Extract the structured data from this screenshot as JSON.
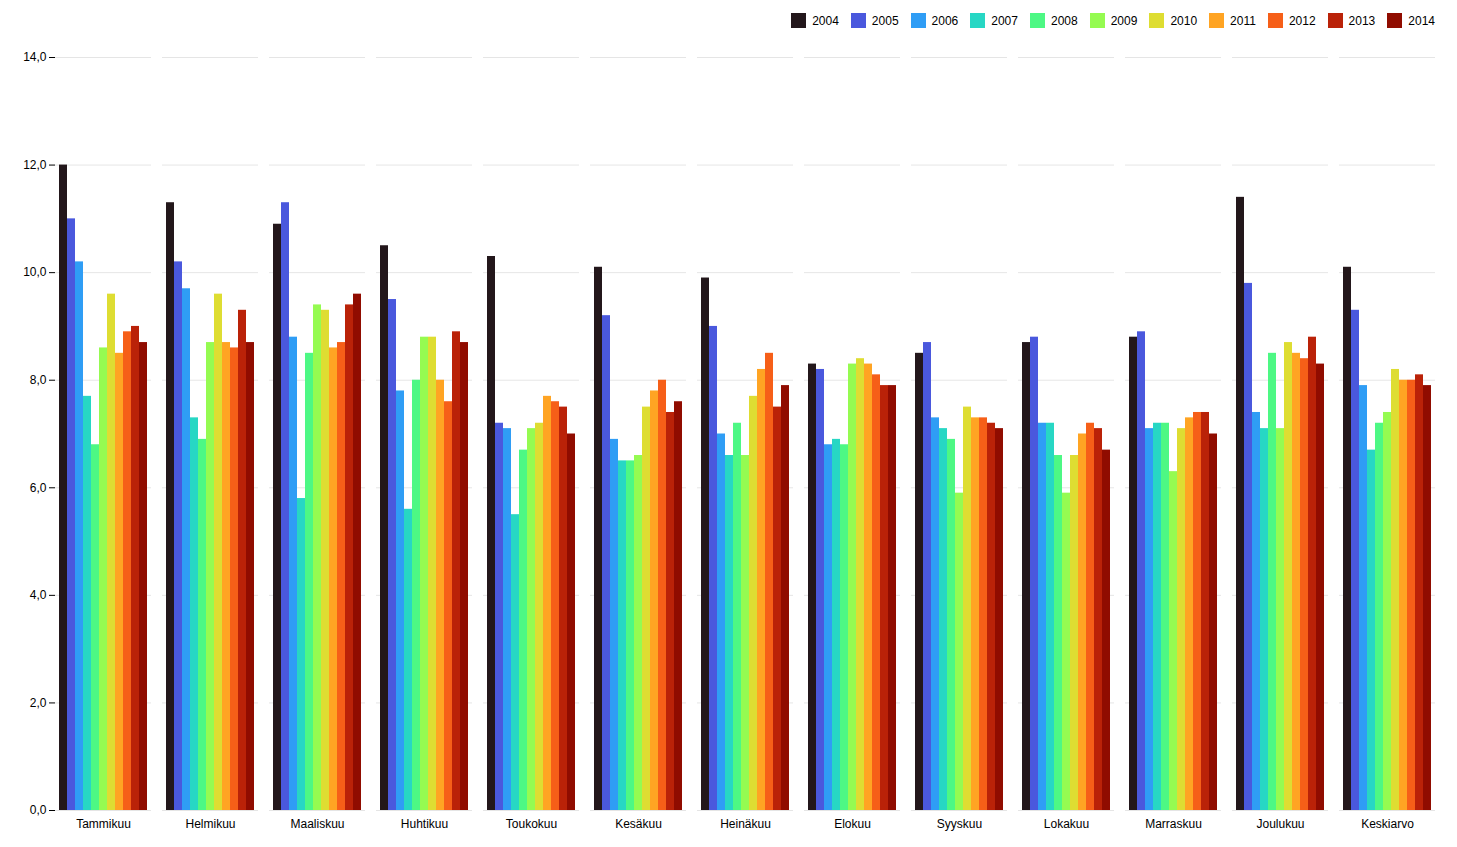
{
  "chart_data": {
    "type": "bar",
    "categories": [
      "Tammikuu",
      "Helmikuu",
      "Maaliskuu",
      "Huhtikuu",
      "Toukokuu",
      "Kesäkuu",
      "Heinäkuu",
      "Elokuu",
      "Syyskuu",
      "Lokakuu",
      "Marraskuu",
      "Joulukuu",
      "Keskiarvo"
    ],
    "series": [
      {
        "name": "2004",
        "values": [
          12.0,
          11.3,
          10.9,
          10.5,
          10.3,
          10.1,
          9.9,
          8.3,
          8.5,
          8.7,
          8.8,
          11.4,
          10.1
        ]
      },
      {
        "name": "2005",
        "values": [
          11.0,
          10.2,
          11.3,
          9.5,
          7.2,
          9.2,
          9.0,
          8.2,
          8.7,
          8.8,
          8.9,
          9.8,
          9.3
        ]
      },
      {
        "name": "2006",
        "values": [
          10.2,
          9.7,
          8.8,
          7.8,
          7.1,
          6.9,
          7.0,
          6.8,
          7.3,
          7.2,
          7.1,
          7.4,
          7.9
        ]
      },
      {
        "name": "2007",
        "values": [
          7.7,
          7.3,
          5.8,
          5.6,
          5.5,
          6.5,
          6.6,
          6.9,
          7.1,
          7.2,
          7.2,
          7.1,
          6.7
        ]
      },
      {
        "name": "2008",
        "values": [
          6.8,
          6.9,
          8.5,
          8.0,
          6.7,
          6.5,
          7.2,
          6.8,
          6.9,
          6.6,
          7.2,
          8.5,
          7.2
        ]
      },
      {
        "name": "2009",
        "values": [
          8.6,
          8.7,
          9.4,
          8.8,
          7.1,
          6.6,
          6.6,
          8.3,
          5.9,
          5.9,
          6.3,
          7.1,
          7.4
        ]
      },
      {
        "name": "2010",
        "values": [
          9.6,
          9.6,
          9.3,
          8.8,
          7.2,
          7.5,
          7.7,
          8.4,
          7.5,
          6.6,
          7.1,
          8.7,
          8.2
        ]
      },
      {
        "name": "2011",
        "values": [
          8.5,
          8.7,
          8.6,
          8.0,
          7.7,
          7.8,
          8.2,
          8.3,
          7.3,
          7.0,
          7.3,
          8.5,
          8.0
        ]
      },
      {
        "name": "2012",
        "values": [
          8.9,
          8.6,
          8.7,
          7.6,
          7.6,
          8.0,
          8.5,
          8.1,
          7.3,
          7.2,
          7.4,
          8.4,
          8.0
        ]
      },
      {
        "name": "2013",
        "values": [
          9.0,
          9.3,
          9.4,
          8.9,
          7.5,
          7.4,
          7.5,
          7.9,
          7.2,
          7.1,
          7.4,
          8.8,
          8.1
        ]
      },
      {
        "name": "2014",
        "values": [
          8.7,
          8.7,
          9.6,
          8.7,
          7.0,
          7.6,
          7.9,
          7.9,
          7.1,
          6.7,
          7.0,
          8.3,
          7.9
        ]
      }
    ],
    "ylim": [
      0,
      14
    ],
    "yticks": [
      {
        "value": 0,
        "label": "0,0"
      },
      {
        "value": 2.0,
        "label": "2,0"
      },
      {
        "value": 4.0,
        "label": "4,0"
      },
      {
        "value": 6.0,
        "label": "6,0"
      },
      {
        "value": 8.0,
        "label": "8,0"
      },
      {
        "value": 10.0,
        "label": "10,0"
      },
      {
        "value": 12.0,
        "label": "12,0"
      },
      {
        "value": 14.0,
        "label": "14,0"
      }
    ],
    "grid": true,
    "legend": "upper right"
  }
}
